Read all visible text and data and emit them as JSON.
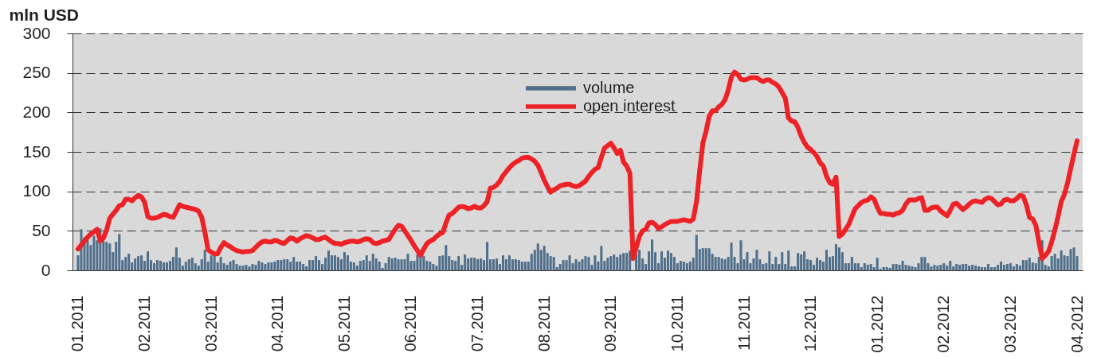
{
  "chart_data": {
    "type": "bar",
    "ylabel": "mln USD",
    "categories": [
      "01.2011",
      null,
      null,
      null,
      null,
      null,
      null,
      null,
      null,
      null,
      null,
      null,
      null,
      null,
      null,
      null,
      null,
      null,
      null,
      null,
      null,
      "02.2011",
      null,
      null,
      null,
      null,
      null,
      null,
      null,
      null,
      null,
      null,
      null,
      null,
      null,
      null,
      null,
      null,
      null,
      null,
      null,
      null,
      "03.2011",
      null,
      null,
      null,
      null,
      null,
      null,
      null,
      null,
      null,
      null,
      null,
      null,
      null,
      null,
      null,
      null,
      null,
      null,
      null,
      null,
      "04.2011",
      null,
      null,
      null,
      null,
      null,
      null,
      null,
      null,
      null,
      null,
      null,
      null,
      null,
      null,
      null,
      null,
      null,
      null,
      null,
      null,
      "05.2011",
      null,
      null,
      null,
      null,
      null,
      null,
      null,
      null,
      null,
      null,
      null,
      null,
      null,
      null,
      null,
      null,
      null,
      null,
      null,
      null,
      "06.2011",
      null,
      null,
      null,
      null,
      null,
      null,
      null,
      null,
      null,
      null,
      null,
      null,
      null,
      null,
      null,
      null,
      null,
      null,
      null,
      null,
      "07.2011",
      null,
      null,
      null,
      null,
      null,
      null,
      null,
      null,
      null,
      null,
      null,
      null,
      null,
      null,
      null,
      null,
      null,
      null,
      null,
      null,
      "08.2011",
      null,
      null,
      null,
      null,
      null,
      null,
      null,
      null,
      null,
      null,
      null,
      null,
      null,
      null,
      null,
      null,
      null,
      null,
      null,
      null,
      "09.2011",
      null,
      null,
      null,
      null,
      null,
      null,
      null,
      null,
      null,
      null,
      null,
      null,
      null,
      null,
      null,
      null,
      null,
      null,
      null,
      null,
      "10.2011",
      null,
      null,
      null,
      null,
      null,
      null,
      null,
      null,
      null,
      null,
      null,
      null,
      null,
      null,
      null,
      null,
      null,
      null,
      null,
      null,
      "11.2011",
      null,
      null,
      null,
      null,
      null,
      null,
      null,
      null,
      null,
      null,
      null,
      null,
      null,
      null,
      null,
      null,
      null,
      null,
      null,
      null,
      "12.2011",
      null,
      null,
      null,
      null,
      null,
      null,
      null,
      null,
      null,
      null,
      null,
      null,
      null,
      null,
      null,
      null,
      null,
      null,
      null,
      null,
      "01.2012",
      null,
      null,
      null,
      null,
      null,
      null,
      null,
      null,
      null,
      null,
      null,
      null,
      null,
      null,
      null,
      null,
      null,
      null,
      null,
      null,
      "02.2012",
      null,
      null,
      null,
      null,
      null,
      null,
      null,
      null,
      null,
      null,
      null,
      null,
      null,
      null,
      null,
      null,
      null,
      null,
      null,
      null,
      "03.2012",
      null,
      null,
      null,
      null,
      null,
      null,
      null,
      null,
      null,
      null,
      null,
      null,
      null,
      null,
      null,
      null,
      null,
      null,
      null,
      null,
      "04.2012"
    ],
    "ylim": [
      0,
      300
    ],
    "yticks": [
      0,
      50,
      100,
      150,
      200,
      250,
      300
    ],
    "grid": "y",
    "legend": "top",
    "series": [
      {
        "name": "volume",
        "color": "#4f6f8b",
        "values": [
          19,
          52,
          42,
          38,
          32,
          44,
          38,
          53,
          37,
          36,
          34,
          23,
          36,
          46,
          13,
          17,
          21,
          10,
          15,
          18,
          19,
          12,
          24,
          13,
          9,
          13,
          12,
          10,
          10,
          12,
          17,
          29,
          16,
          6,
          11,
          14,
          16,
          9,
          6,
          14,
          26,
          11,
          19,
          20,
          10,
          17,
          9,
          7,
          11,
          13,
          8,
          6,
          6,
          7,
          5,
          8,
          7,
          12,
          10,
          8,
          10,
          10,
          11,
          13,
          13,
          14,
          14,
          11,
          17,
          11,
          11,
          8,
          5,
          13,
          13,
          18,
          13,
          8,
          16,
          25,
          19,
          19,
          17,
          14,
          23,
          19,
          11,
          10,
          6,
          12,
          13,
          19,
          12,
          21,
          15,
          11,
          3,
          9,
          17,
          15,
          16,
          14,
          14,
          14,
          21,
          12,
          12,
          20,
          18,
          18,
          12,
          11,
          8,
          6,
          18,
          19,
          32,
          18,
          13,
          12,
          18,
          7,
          20,
          15,
          16,
          16,
          14,
          15,
          13,
          36,
          14,
          14,
          15,
          8,
          19,
          14,
          19,
          14,
          14,
          13,
          11,
          11,
          11,
          21,
          26,
          34,
          26,
          31,
          22,
          18,
          17,
          4,
          8,
          13,
          13,
          19,
          9,
          14,
          11,
          14,
          18,
          17,
          7,
          19,
          11,
          31,
          12,
          16,
          18,
          20,
          17,
          20,
          22,
          22,
          25,
          null,
          20,
          26,
          15,
          8,
          24,
          39,
          23,
          9,
          24,
          16,
          25,
          22,
          17,
          9,
          12,
          11,
          9,
          11,
          16,
          45,
          27,
          28,
          28,
          28,
          21,
          17,
          17,
          15,
          14,
          17,
          35,
          17,
          9,
          38,
          14,
          23,
          9,
          15,
          26,
          14,
          8,
          9,
          24,
          8,
          17,
          8,
          23,
          8,
          25,
          5,
          5,
          22,
          20,
          24,
          14,
          13,
          7,
          16,
          13,
          11,
          26,
          17,
          18,
          33,
          29,
          23,
          9,
          9,
          17,
          9,
          9,
          4,
          9,
          7,
          8,
          4,
          16,
          2,
          4,
          4,
          3,
          8,
          8,
          7,
          12,
          7,
          6,
          5,
          4,
          9,
          17,
          17,
          9,
          5,
          7,
          6,
          7,
          9,
          6,
          12,
          5,
          8,
          7,
          8,
          8,
          6,
          7,
          6,
          5,
          4,
          4,
          8,
          4,
          4,
          7,
          11,
          7,
          8,
          9,
          5,
          8,
          6,
          13,
          13,
          16,
          10,
          9,
          17,
          38,
          7,
          5,
          18,
          21,
          15,
          25,
          19,
          18,
          27,
          29,
          18
        ]
      },
      {
        "name": "open interest",
        "type": "line",
        "color": "#ed2227",
        "values": [
          27,
          32,
          37,
          42,
          46,
          49,
          52,
          37,
          41,
          51,
          66,
          71,
          76,
          82,
          83,
          90,
          90,
          88,
          92,
          95,
          93,
          86,
          68,
          66,
          66,
          67,
          69,
          71,
          70,
          68,
          67,
          75,
          83,
          81,
          80,
          79,
          78,
          77,
          75,
          67,
          48,
          26,
          23,
          21,
          21,
          29,
          35,
          32,
          30,
          27,
          25,
          24,
          23,
          24,
          24,
          25,
          29,
          33,
          36,
          37,
          36,
          36,
          38,
          37,
          35,
          34,
          38,
          41,
          40,
          37,
          40,
          42,
          44,
          43,
          41,
          39,
          39,
          41,
          42,
          39,
          36,
          34,
          34,
          33,
          35,
          36,
          37,
          37,
          36,
          37,
          39,
          40,
          39,
          35,
          34,
          35,
          37,
          38,
          39,
          46,
          52,
          57,
          56,
          50,
          44,
          38,
          31,
          25,
          19,
          27,
          34,
          37,
          39,
          43,
          46,
          48,
          60,
          70,
          72,
          76,
          80,
          81,
          80,
          78,
          79,
          81,
          79,
          79,
          82,
          87,
          104,
          105,
          108,
          113,
          120,
          125,
          130,
          134,
          137,
          139,
          142,
          143,
          143,
          141,
          138,
          133,
          124,
          114,
          106,
          99,
          102,
          104,
          107,
          108,
          109,
          109,
          107,
          106,
          107,
          110,
          113,
          119,
          124,
          128,
          130,
          143,
          155,
          158,
          161,
          155,
          148,
          152,
          137,
          132,
          123,
          15,
          29,
          43,
          50,
          52,
          60,
          61,
          58,
          53,
          55,
          58,
          60,
          62,
          62,
          62,
          63,
          64,
          63,
          62,
          65,
          87,
          126,
          161,
          176,
          195,
          202,
          202,
          207,
          210,
          216,
          228,
          245,
          251,
          248,
          242,
          241,
          242,
          244,
          244,
          244,
          241,
          239,
          241,
          241,
          238,
          236,
          232,
          225,
          218,
          193,
          189,
          188,
          181,
          170,
          162,
          156,
          153,
          149,
          144,
          136,
          132,
          119,
          111,
          109,
          118,
          43,
          46,
          52,
          58,
          68,
          78,
          82,
          86,
          88,
          89,
          93,
          90,
          80,
          72,
          72,
          71,
          71,
          70,
          72,
          73,
          76,
          84,
          89,
          89,
          89,
          91,
          92,
          76,
          76,
          79,
          80,
          80,
          75,
          72,
          69,
          76,
          84,
          85,
          81,
          77,
          80,
          84,
          87,
          88,
          87,
          86,
          90,
          92,
          91,
          87,
          83,
          84,
          89,
          90,
          88,
          88,
          91,
          95,
          94,
          83,
          67,
          65,
          57,
          35,
          15,
          19,
          24,
          36,
          51,
          68,
          87,
          96,
          111,
          129,
          147,
          164
        ]
      }
    ]
  }
}
